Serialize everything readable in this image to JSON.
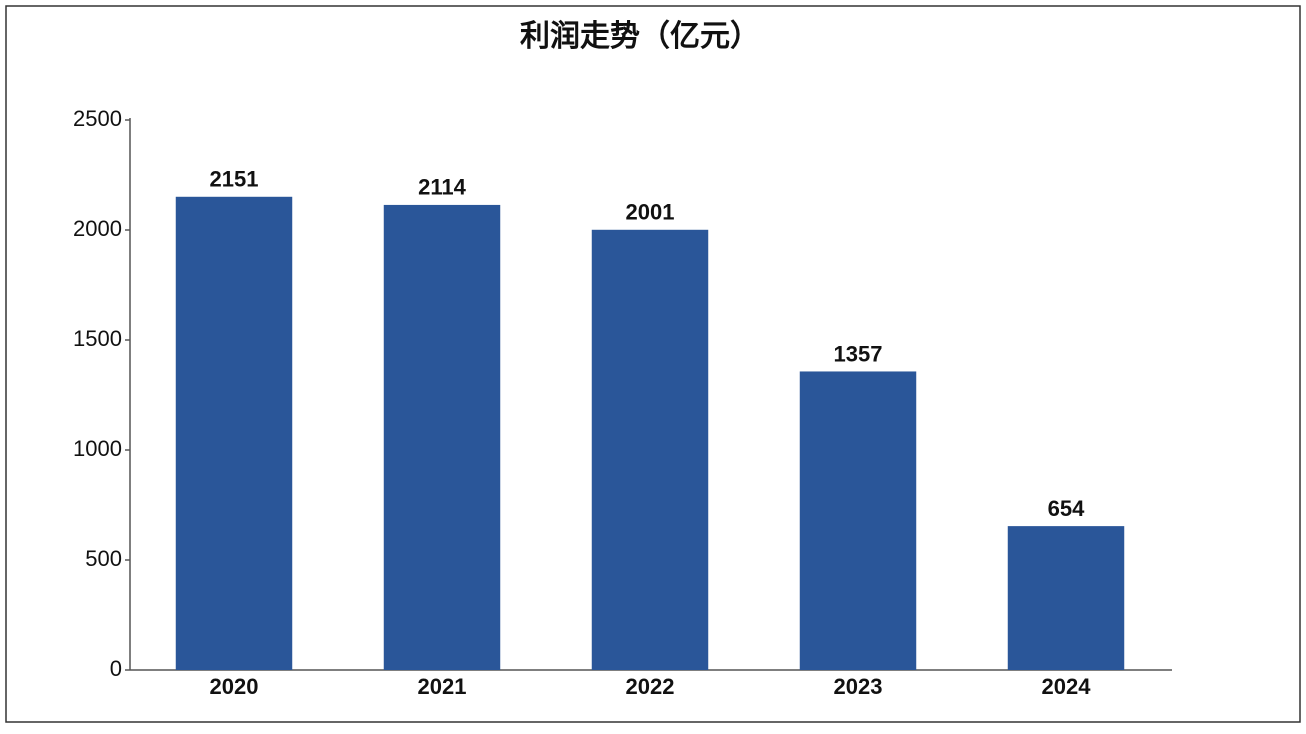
{
  "chart_data": {
    "type": "bar",
    "title": "利润走势（亿元）",
    "categories": [
      "2020",
      "2021",
      "2022",
      "2023",
      "2024"
    ],
    "values": [
      2151,
      2114,
      2001,
      1357,
      654
    ],
    "color": "#2a5699",
    "ylim": [
      0,
      2500
    ],
    "yticks": [
      0,
      500,
      1000,
      1500,
      2000,
      2500
    ]
  }
}
